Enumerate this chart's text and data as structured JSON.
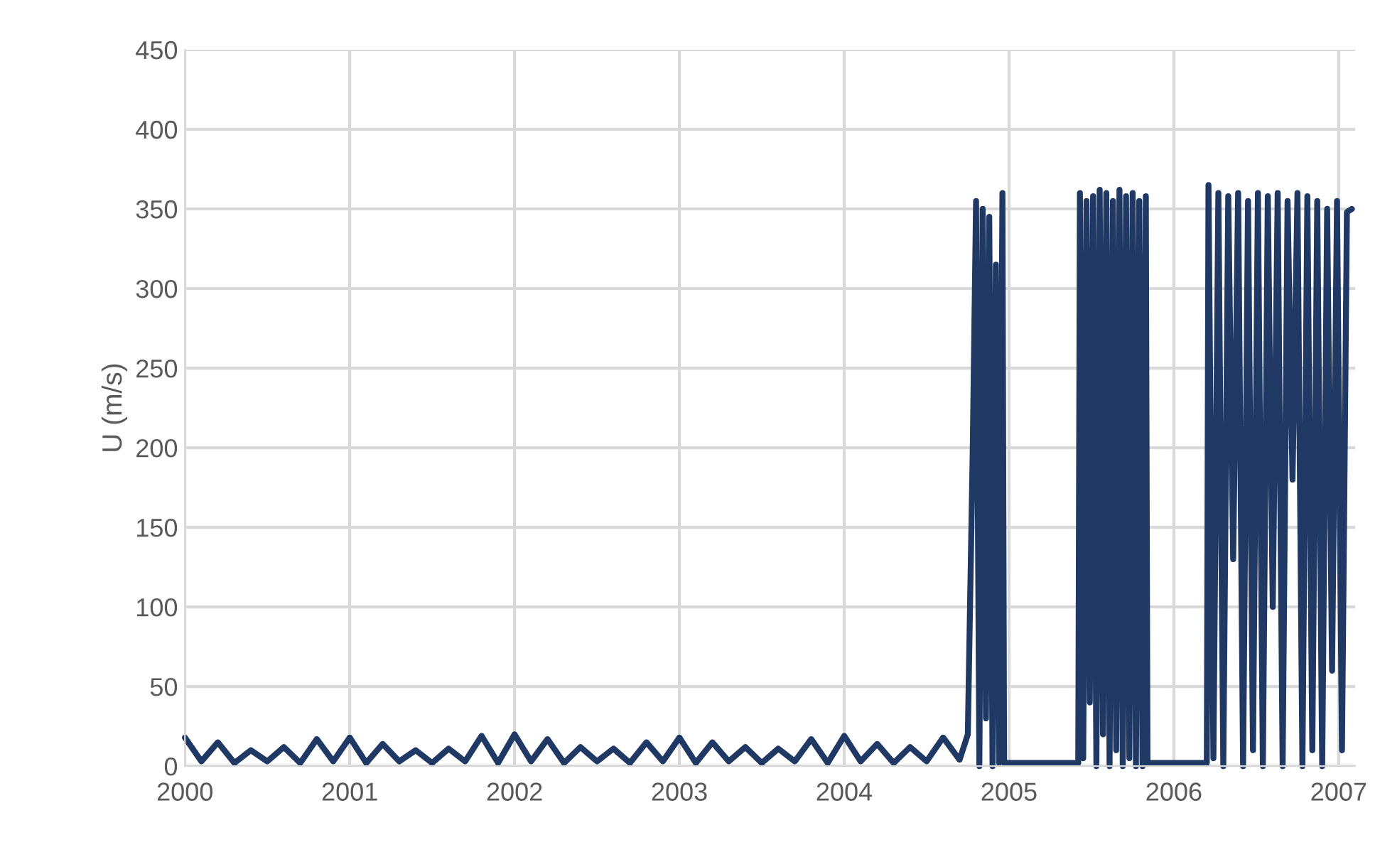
{
  "chart_data": {
    "type": "line",
    "ylabel": "U (m/s)",
    "x": [
      2000.0,
      2000.1,
      2000.2,
      2000.3,
      2000.4,
      2000.5,
      2000.6,
      2000.7,
      2000.8,
      2000.9,
      2001.0,
      2001.1,
      2001.2,
      2001.3,
      2001.4,
      2001.5,
      2001.6,
      2001.7,
      2001.8,
      2001.9,
      2002.0,
      2002.1,
      2002.2,
      2002.3,
      2002.4,
      2002.5,
      2002.6,
      2002.7,
      2002.8,
      2002.9,
      2003.0,
      2003.1,
      2003.2,
      2003.3,
      2003.4,
      2003.5,
      2003.6,
      2003.7,
      2003.8,
      2003.9,
      2004.0,
      2004.1,
      2004.2,
      2004.3,
      2004.4,
      2004.5,
      2004.6,
      2004.7,
      2004.75,
      2004.78,
      2004.8,
      2004.82,
      2004.84,
      2004.86,
      2004.88,
      2004.9,
      2004.92,
      2004.94,
      2004.96,
      2004.97,
      2005.42,
      2005.43,
      2005.45,
      2005.47,
      2005.49,
      2005.51,
      2005.53,
      2005.55,
      2005.57,
      2005.59,
      2005.61,
      2005.63,
      2005.65,
      2005.67,
      2005.69,
      2005.71,
      2005.73,
      2005.75,
      2005.77,
      2005.79,
      2005.81,
      2005.83,
      2005.84,
      2006.2,
      2006.21,
      2006.24,
      2006.27,
      2006.3,
      2006.33,
      2006.36,
      2006.39,
      2006.42,
      2006.45,
      2006.48,
      2006.51,
      2006.54,
      2006.57,
      2006.6,
      2006.63,
      2006.66,
      2006.69,
      2006.72,
      2006.75,
      2006.78,
      2006.81,
      2006.84,
      2006.87,
      2006.9,
      2006.93,
      2006.96,
      2006.99,
      2007.02,
      2007.05,
      2007.08
    ],
    "series": [
      {
        "color": "#1f3864",
        "values": [
          18,
          3,
          15,
          2,
          10,
          3,
          12,
          2,
          17,
          3,
          18,
          2,
          14,
          3,
          10,
          2,
          11,
          3,
          19,
          2,
          20,
          3,
          17,
          2,
          12,
          3,
          11,
          2,
          15,
          3,
          18,
          2,
          15,
          3,
          12,
          2,
          11,
          3,
          17,
          2,
          19,
          3,
          14,
          2,
          12,
          3,
          18,
          4,
          20,
          200,
          355,
          0,
          350,
          30,
          345,
          0,
          315,
          2,
          360,
          2,
          2,
          360,
          5,
          355,
          40,
          358,
          0,
          362,
          20,
          360,
          0,
          355,
          10,
          362,
          0,
          358,
          5,
          360,
          0,
          355,
          0,
          358,
          2,
          2,
          365,
          5,
          360,
          0,
          358,
          130,
          360,
          0,
          355,
          10,
          360,
          0,
          358,
          100,
          360,
          0,
          355,
          180,
          360,
          0,
          358,
          10,
          355,
          0,
          350,
          60,
          355,
          10,
          348,
          350
        ]
      }
    ],
    "xlim": [
      2000.0,
      2007.1
    ],
    "xticks": [
      2000,
      2001,
      2002,
      2003,
      2004,
      2005,
      2006,
      2007
    ],
    "ylim": [
      0,
      450
    ],
    "yticks": [
      0,
      50,
      100,
      150,
      200,
      250,
      300,
      350,
      400,
      450
    ],
    "grid": true,
    "marker": "none",
    "line_style": "solid"
  }
}
